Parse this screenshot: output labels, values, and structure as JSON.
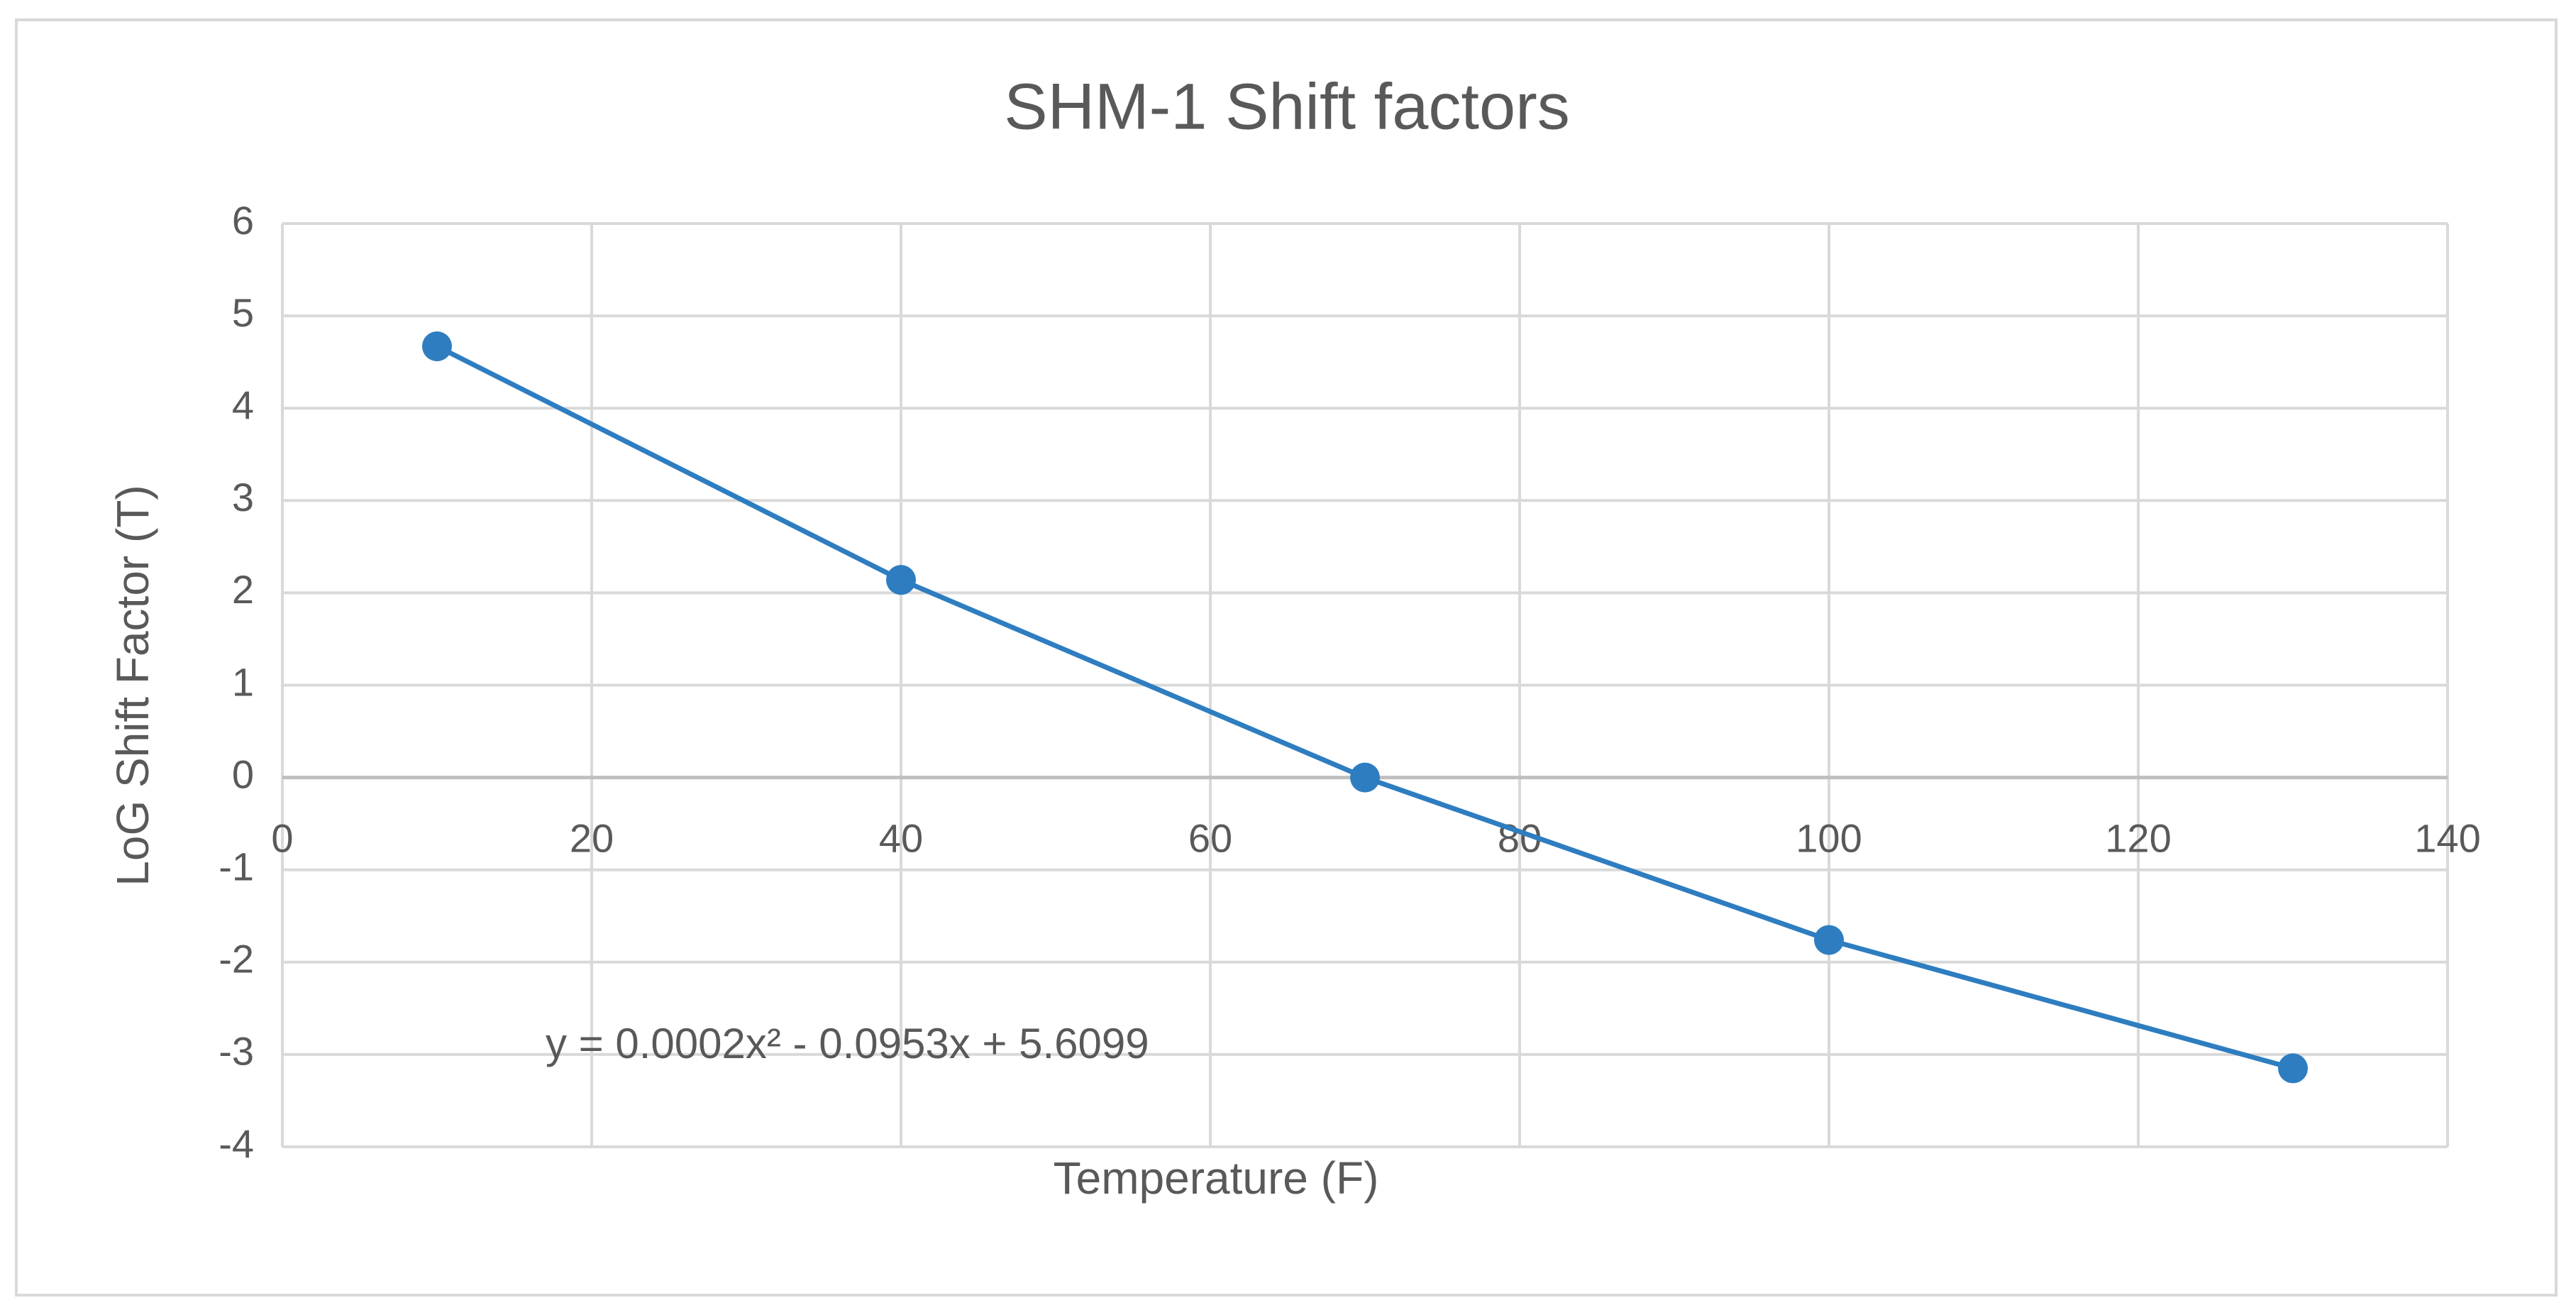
{
  "chart_data": {
    "type": "scatter",
    "title": "SHM-1 Shift factors",
    "x_label": "Temperature  (F)",
    "y_label": "LoG Shift Factor (T)",
    "x": [
      10,
      40,
      70,
      100,
      130
    ],
    "values": [
      4.67,
      2.14,
      0,
      -1.76,
      -3.15
    ],
    "color": "#2e7dc0",
    "line": true,
    "annotation": "y = 0.0002x² - 0.0953x + 5.6099",
    "xlim": [
      0,
      140
    ],
    "xticks": [
      0,
      20,
      40,
      60,
      80,
      100,
      120,
      140
    ],
    "ylim": [
      -4,
      6
    ],
    "yticks": [
      -4,
      -3,
      -2,
      -1,
      0,
      1,
      2,
      3,
      4,
      5,
      6
    ],
    "grid": true
  }
}
